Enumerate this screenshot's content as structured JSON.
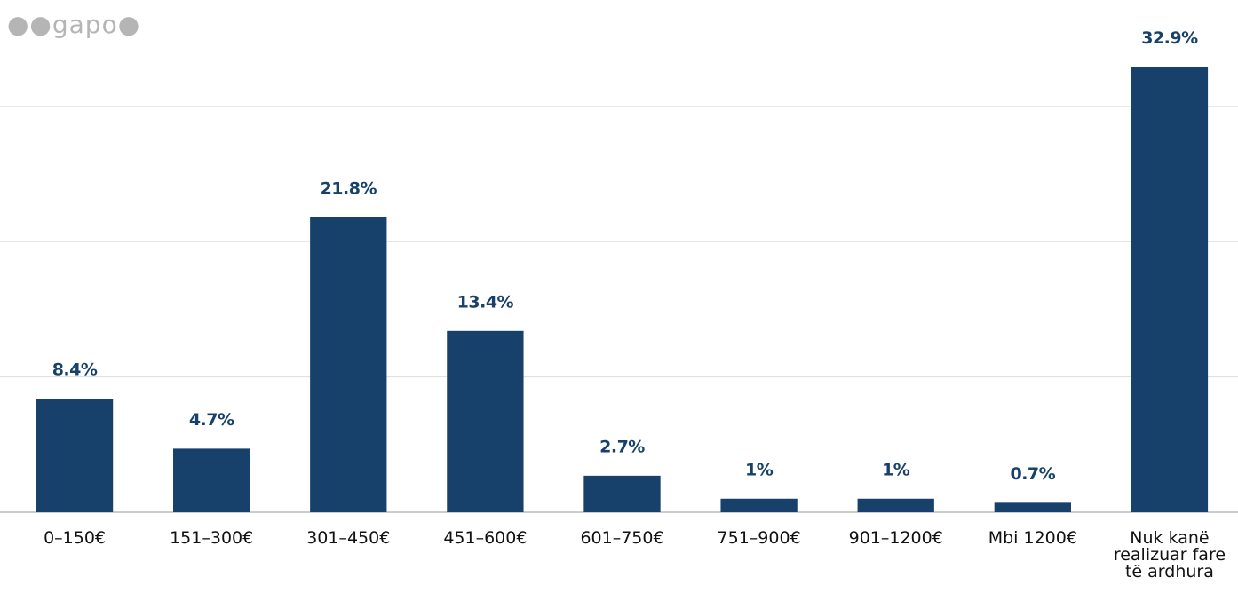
{
  "logo": "gapo",
  "chart_data": {
    "type": "bar",
    "categories": [
      "0–150€",
      "151–300€",
      "301–450€",
      "451–600€",
      "601–750€",
      "751–900€",
      "901–1200€",
      "Mbi 1200€",
      "Nuk kanë realizuar fare të ardhura"
    ],
    "values": [
      8.4,
      4.7,
      21.8,
      13.4,
      2.7,
      1,
      1,
      0.7,
      32.9
    ],
    "value_labels": [
      "8.4%",
      "4.7%",
      "21.8%",
      "13.4%",
      "2.7%",
      "1%",
      "1%",
      "0.7%",
      "32.9%"
    ],
    "color": "#17406b",
    "ylim": [
      0,
      37.8
    ],
    "yticks": [
      0,
      10,
      20,
      30
    ],
    "grid": true
  }
}
